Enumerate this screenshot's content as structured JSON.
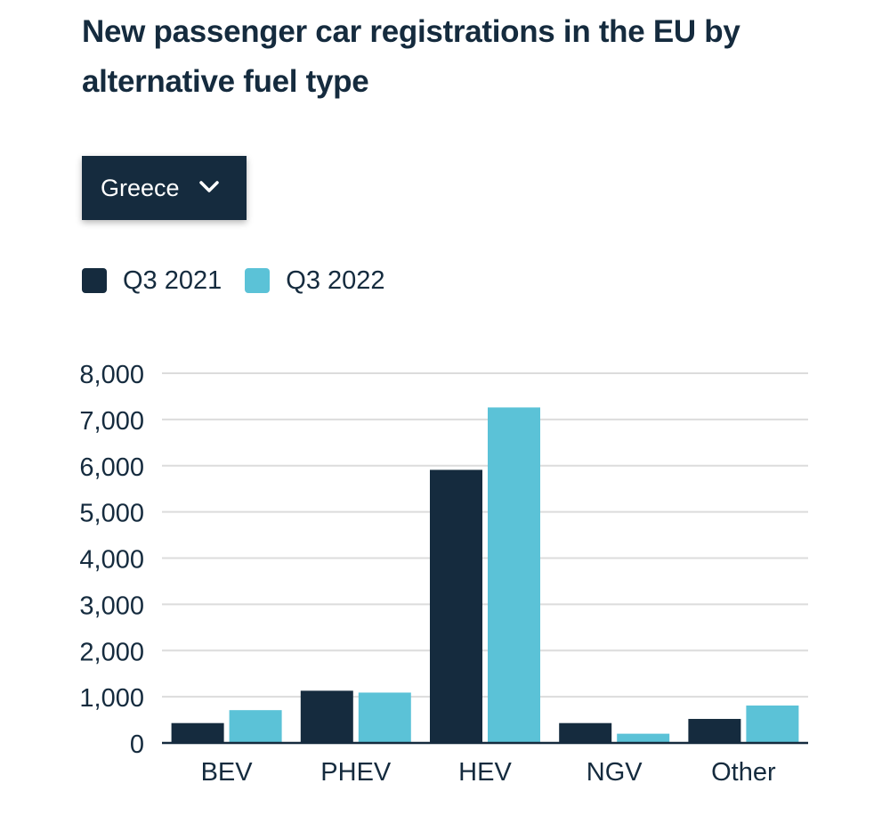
{
  "title": "New passenger car registrations in the EU by alternative fuel type",
  "dropdown": {
    "selected": "Greece",
    "icon": "chevron-down-icon"
  },
  "colors": {
    "dark": "#152b3e",
    "light": "#5bc2d7",
    "grid": "#dcdcdc",
    "axis": "#152b3e"
  },
  "chart_data": {
    "type": "bar",
    "title": "New passenger car registrations in the EU by alternative fuel type",
    "xlabel": "",
    "ylabel": "",
    "categories": [
      "BEV",
      "PHEV",
      "HEV",
      "NGV",
      "Other"
    ],
    "series": [
      {
        "name": "Q3 2021",
        "color": "#152b3e",
        "values": [
          430,
          1130,
          5910,
          430,
          520
        ]
      },
      {
        "name": "Q3 2022",
        "color": "#5bc2d7",
        "values": [
          710,
          1090,
          7260,
          200,
          810
        ]
      }
    ],
    "ylim": [
      0,
      8000
    ],
    "yticks": [
      "0",
      "1,000",
      "2,000",
      "3,000",
      "4,000",
      "5,000",
      "6,000",
      "7,000",
      "8,000"
    ],
    "ytick_values": [
      0,
      1000,
      2000,
      3000,
      4000,
      5000,
      6000,
      7000,
      8000
    ],
    "grid": true,
    "legend": "top-left"
  }
}
